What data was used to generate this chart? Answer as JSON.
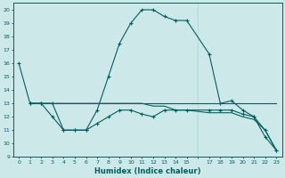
{
  "xlabel": "Humidex (Indice chaleur)",
  "xlim": [
    -0.5,
    23.5
  ],
  "ylim": [
    9,
    20.5
  ],
  "xticks": [
    0,
    1,
    2,
    3,
    4,
    5,
    6,
    7,
    8,
    9,
    10,
    11,
    12,
    13,
    14,
    15,
    17,
    18,
    19,
    20,
    21,
    22,
    23
  ],
  "yticks": [
    9,
    10,
    11,
    12,
    13,
    14,
    15,
    16,
    17,
    18,
    19,
    20
  ],
  "bg_color": "#cce8e8",
  "grid_color": "#aad4d4",
  "line_color": "#006060",
  "line1_x": [
    0,
    1,
    2,
    3,
    4,
    5,
    6,
    7,
    8,
    9,
    10,
    11,
    12,
    13,
    14,
    15,
    17,
    18,
    19,
    20,
    21,
    22,
    23
  ],
  "line1_y": [
    16,
    13,
    13,
    13,
    11,
    11,
    11,
    12.5,
    15,
    17.5,
    19,
    20,
    20,
    19.5,
    19.2,
    19.2,
    16.7,
    13,
    13.2,
    12.5,
    12,
    11,
    9.5
  ],
  "line2_x": [
    1,
    23
  ],
  "line2_y": [
    13,
    13
  ],
  "line3_x": [
    1,
    2,
    3,
    4,
    5,
    6,
    7,
    8,
    9,
    10,
    11,
    12,
    13,
    14,
    15,
    17,
    18,
    19,
    20,
    21,
    22,
    23
  ],
  "line3_y": [
    13,
    13,
    12,
    11,
    11,
    11,
    11.5,
    12,
    12.5,
    12.5,
    12.2,
    12,
    12.5,
    12.5,
    12.5,
    12.5,
    12.5,
    12.5,
    12.2,
    12,
    10.5,
    9.5
  ],
  "line4_x": [
    1,
    2,
    3,
    4,
    5,
    6,
    7,
    8,
    9,
    10,
    11,
    12,
    13,
    14,
    15,
    17,
    18,
    19,
    20,
    21,
    22,
    23
  ],
  "line4_y": [
    13,
    13,
    13,
    13,
    13,
    13,
    13,
    13,
    13,
    13,
    13,
    12.8,
    12.8,
    12.5,
    12.5,
    12.3,
    12.3,
    12.3,
    12.0,
    11.8,
    11.0,
    9.5
  ]
}
